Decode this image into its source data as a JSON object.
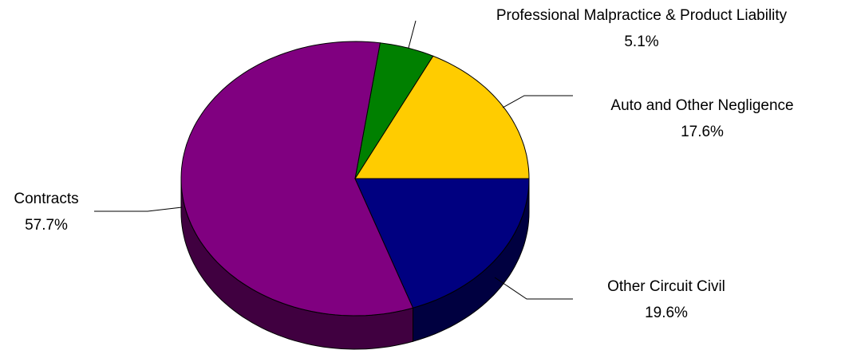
{
  "chart_data": {
    "type": "pie",
    "categories": [
      "Auto and Other Negligence",
      "Professional Malpractice & Product Liability",
      "Contracts",
      "Other Circuit Civil"
    ],
    "values": [
      17.6,
      5.1,
      57.7,
      19.6
    ],
    "value_labels": [
      "17.6%",
      "5.1%",
      "57.7%",
      "19.6%"
    ],
    "colors": [
      "#ffcc00",
      "#008000",
      "#800080",
      "#000080"
    ]
  }
}
